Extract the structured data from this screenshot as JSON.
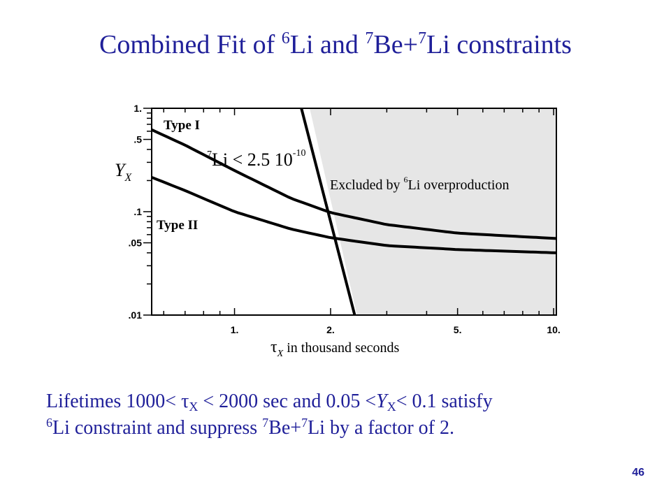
{
  "slide": {
    "title": {
      "part1": "Combined Fit of ",
      "sup1": "6",
      "part2": "Li and ",
      "sup2": "7",
      "part3": "Be+",
      "sup3": "7",
      "part4": "Li constraints"
    },
    "caption": {
      "line1_a": "Lifetimes 1000< ",
      "tau": "τ",
      "sub_x1": "X",
      "line1_b": " < 2000 sec and 0.05 <",
      "y": "Y",
      "sub_x2": "X",
      "line1_c": "< 0.1 satisfy",
      "sup1": "6",
      "line2_a": "Li constraint and suppress ",
      "sup2": "7",
      "line2_b": "Be+",
      "sup3": "7",
      "line2_c": "Li by a factor of 2."
    },
    "page_number": "46",
    "colors": {
      "text_accent": "#1f1f99",
      "excluded_fill": "#e6e6e6",
      "curve": "#000000"
    }
  },
  "chart_data": {
    "type": "line",
    "x_scale": "log",
    "y_scale": "log",
    "xlim": [
      0.55,
      10.2
    ],
    "ylim": [
      0.01,
      1.0
    ],
    "xlabel": {
      "tau": "τ",
      "sub": "X",
      "rest": " in thousand seconds"
    },
    "ylabel": {
      "main": "Y",
      "sub": "X"
    },
    "x_ticks": [
      {
        "value": 1,
        "label": "1."
      },
      {
        "value": 2,
        "label": "2."
      },
      {
        "value": 5,
        "label": "5."
      },
      {
        "value": 10,
        "label": "10."
      }
    ],
    "y_ticks": [
      {
        "value": 1,
        "label": "1."
      },
      {
        "value": 0.5,
        "label": ".5"
      },
      {
        "value": 0.1,
        "label": ".1"
      },
      {
        "value": 0.05,
        "label": ".05"
      },
      {
        "value": 0.01,
        "label": ".01"
      }
    ],
    "series": [
      {
        "name": "Type I",
        "x": [
          0.55,
          0.7,
          1.0,
          1.5,
          2.0,
          3.0,
          5.0,
          10.2
        ],
        "y": [
          0.62,
          0.44,
          0.25,
          0.135,
          0.098,
          0.075,
          0.062,
          0.055
        ]
      },
      {
        "name": "Type II",
        "x": [
          0.55,
          0.7,
          1.0,
          1.5,
          2.0,
          3.0,
          5.0,
          10.2
        ],
        "y": [
          0.215,
          0.16,
          0.1,
          0.068,
          0.056,
          0.047,
          0.043,
          0.04
        ]
      }
    ],
    "li7_boundary": {
      "x": [
        1.62,
        2.38
      ],
      "y": [
        1.0,
        0.01
      ]
    },
    "li6_boundary": {
      "x": [
        1.72,
        2.42
      ],
      "y": [
        1.0,
        0.01
      ]
    },
    "annotations": {
      "type1": "Type I",
      "type2": "Type II",
      "li7": {
        "sup": "7",
        "text": "Li < 2.5 10",
        "exp": "-10"
      },
      "excluded": {
        "pre": "Excluded by ",
        "sup": "6",
        "post": "Li overproduction"
      }
    }
  }
}
